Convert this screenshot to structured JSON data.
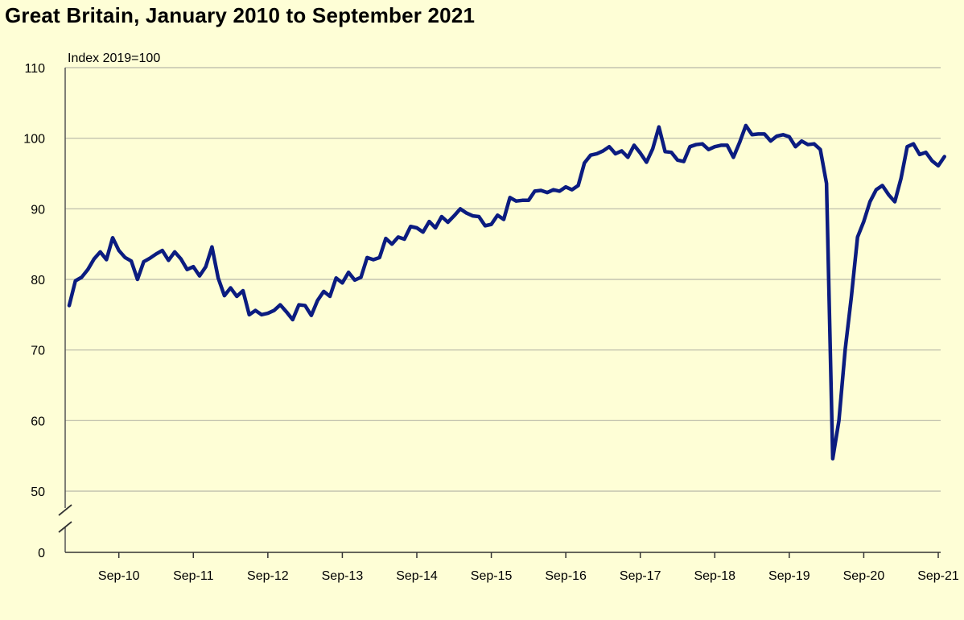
{
  "title": "Great Britain, January 2010 to September 2021",
  "chart_data": {
    "type": "line",
    "title": "Great Britain, January 2010 to September 2021",
    "unit_label": "Index 2019=100",
    "y_ticks": [
      0,
      50,
      60,
      70,
      80,
      90,
      100,
      110
    ],
    "ylim": [
      0,
      110
    ],
    "axis_break": "between 0 and 50",
    "x_ticks": [
      "Sep-10",
      "Sep-11",
      "Sep-12",
      "Sep-13",
      "Sep-14",
      "Sep-15",
      "Sep-16",
      "Sep-17",
      "Sep-18",
      "Sep-19",
      "Sep-20",
      "Sep-21"
    ],
    "x_start": "2010-01",
    "x_end": "2021-09",
    "grid": "horizontal",
    "legend": "none",
    "line_color": "#0b1c80",
    "background_color": "#fefed6",
    "grid_color": "#b8b8a8",
    "series": [
      {
        "values": [
          76.3,
          79.8,
          80.3,
          81.4,
          82.9,
          83.9,
          82.8,
          85.9,
          84.1,
          83.1,
          82.6,
          80.0,
          82.5,
          83.0,
          83.6,
          84.1,
          82.7,
          83.9,
          82.9,
          81.4,
          81.8,
          80.5,
          81.8,
          84.6,
          80.2,
          77.7,
          78.8,
          77.6,
          78.4,
          75.0,
          75.6,
          75.0,
          75.2,
          75.6,
          76.4,
          75.4,
          74.3,
          76.4,
          76.3,
          74.9,
          77.0,
          78.3,
          77.6,
          80.2,
          79.5,
          81.0,
          79.9,
          80.3,
          83.1,
          82.8,
          83.1,
          85.8,
          85.0,
          86.0,
          85.7,
          87.5,
          87.3,
          86.7,
          88.2,
          87.3,
          88.9,
          88.1,
          89.0,
          90.0,
          89.4,
          89.0,
          88.9,
          87.6,
          87.8,
          89.1,
          88.5,
          91.6,
          91.1,
          91.2,
          91.2,
          92.5,
          92.6,
          92.3,
          92.7,
          92.5,
          93.1,
          92.7,
          93.3,
          96.5,
          97.6,
          97.8,
          98.2,
          98.8,
          97.8,
          98.2,
          97.3,
          99.0,
          97.9,
          96.6,
          98.5,
          101.6,
          98.1,
          98.0,
          96.9,
          96.7,
          98.8,
          99.1,
          99.2,
          98.4,
          98.8,
          99.0,
          99.0,
          97.3,
          99.4,
          101.8,
          100.5,
          100.6,
          100.6,
          99.6,
          100.3,
          100.5,
          100.2,
          98.8,
          99.6,
          99.1,
          99.2,
          98.4,
          93.6,
          54.6,
          60.0,
          70.0,
          77.5,
          86.0,
          88.2,
          91.0,
          92.7,
          93.3,
          92.0,
          91.0,
          94.3,
          98.8,
          99.2,
          97.7,
          98.0,
          96.8,
          96.1,
          97.4
        ]
      }
    ]
  }
}
